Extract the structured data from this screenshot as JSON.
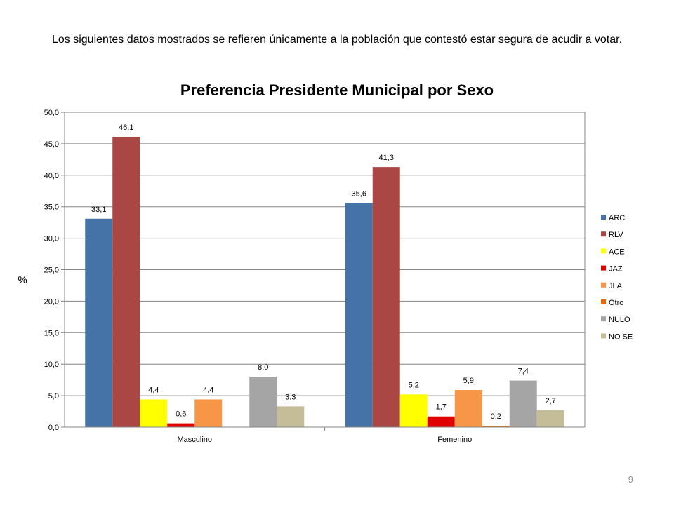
{
  "intro_text": "Los siguientes datos mostrados se refieren únicamente a la población que contestó estar segura de acudir a votar.",
  "page_number": "9",
  "chart_data": {
    "type": "bar",
    "title": "Preferencia Presidente Municipal por Sexo",
    "xlabel": "",
    "ylabel": "%",
    "ylim": [
      0,
      50
    ],
    "yticks": [
      "0,0",
      "5,0",
      "10,0",
      "15,0",
      "20,0",
      "25,0",
      "30,0",
      "35,0",
      "40,0",
      "45,0",
      "50,0"
    ],
    "grid": true,
    "legend_position": "right",
    "categories": [
      "Masculino",
      "Femenino"
    ],
    "series": [
      {
        "name": "ARC",
        "color": "#4572A7",
        "values": [
          33.1,
          35.6
        ],
        "labels": [
          "33,1",
          "35,6"
        ]
      },
      {
        "name": "RLV",
        "color": "#AA4643",
        "values": [
          46.1,
          41.3
        ],
        "labels": [
          "46,1",
          "41,3"
        ]
      },
      {
        "name": "ACE",
        "color": "#FFFF00",
        "values": [
          4.4,
          5.2
        ],
        "labels": [
          "4,4",
          "5,2"
        ]
      },
      {
        "name": "JAZ",
        "color": "#E10000",
        "values": [
          0.6,
          1.7
        ],
        "labels": [
          "0,6",
          "1,7"
        ]
      },
      {
        "name": "JLA",
        "color": "#F79646",
        "values": [
          4.4,
          5.9
        ],
        "labels": [
          "4,4",
          "5,9"
        ]
      },
      {
        "name": "Otro",
        "color": "#E46C0A",
        "values": [
          0.0,
          0.2
        ],
        "labels": [
          "",
          "0,2"
        ]
      },
      {
        "name": "NULO",
        "color": "#A5A5A5",
        "values": [
          8.0,
          7.4
        ],
        "labels": [
          "8,0",
          "7,4"
        ]
      },
      {
        "name": "NO SE",
        "color": "#C4BD97",
        "values": [
          3.3,
          2.7
        ],
        "labels": [
          "3,3",
          "2,7"
        ]
      }
    ]
  }
}
